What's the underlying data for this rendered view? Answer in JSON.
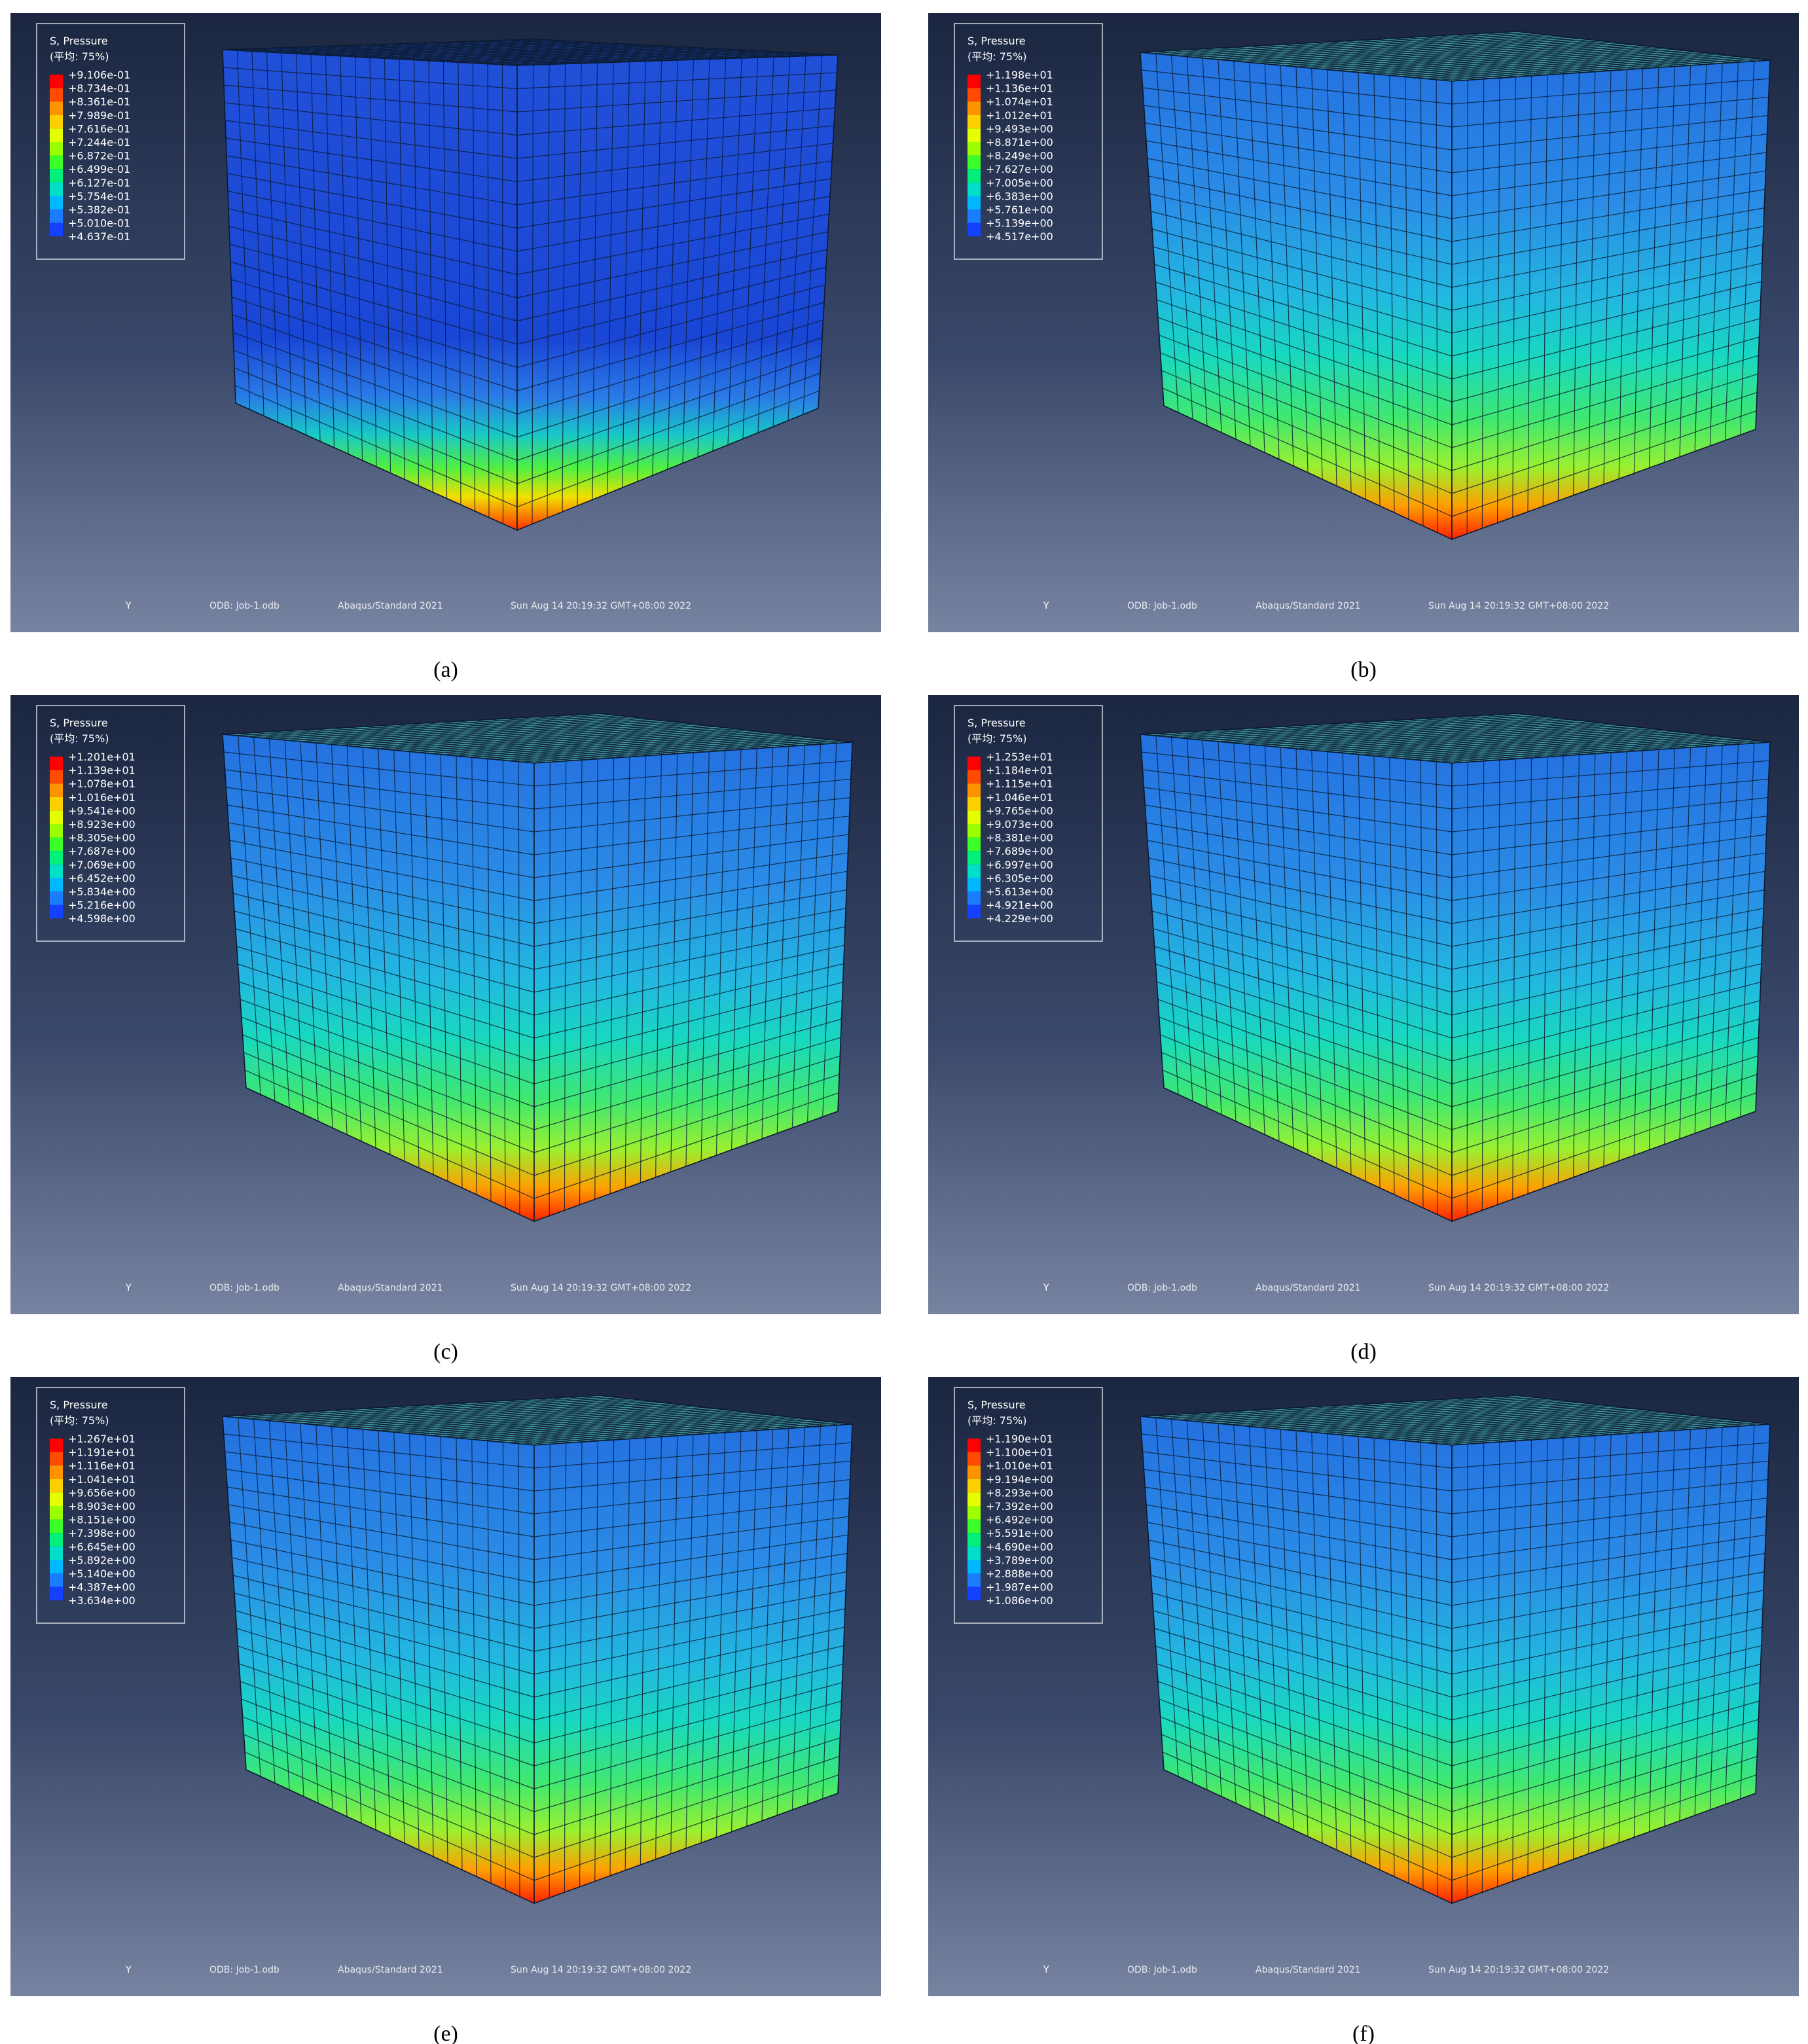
{
  "panels": [
    {
      "caption": "(a)",
      "legend": {
        "title": "S, Pressure",
        "subtitle": "(平均: 75%)",
        "values": [
          "+9.106e-01",
          "+8.734e-01",
          "+8.361e-01",
          "+7.989e-01",
          "+7.616e-01",
          "+7.244e-01",
          "+6.872e-01",
          "+6.499e-01",
          "+6.127e-01",
          "+5.754e-01",
          "+5.382e-01",
          "+5.010e-01",
          "+4.637e-01"
        ]
      },
      "footer": {
        "axis": "Y",
        "odb": "ODB: Job-1.odb",
        "solver": "Abaqus/Standard 2021",
        "date": "Sun Aug 14 20:19:32 GMT+08:00 2022"
      }
    },
    {
      "caption": "(b)",
      "legend": {
        "title": "S, Pressure",
        "subtitle": "(平均: 75%)",
        "values": [
          "+1.198e+01",
          "+1.136e+01",
          "+1.074e+01",
          "+1.012e+01",
          "+9.493e+00",
          "+8.871e+00",
          "+8.249e+00",
          "+7.627e+00",
          "+7.005e+00",
          "+6.383e+00",
          "+5.761e+00",
          "+5.139e+00",
          "+4.517e+00"
        ]
      },
      "footer": {
        "axis": "Y",
        "odb": "ODB: Job-1.odb",
        "solver": "Abaqus/Standard 2021",
        "date": "Sun Aug 14 20:19:32 GMT+08:00 2022"
      }
    },
    {
      "caption": "(c)",
      "legend": {
        "title": "S, Pressure",
        "subtitle": "(平均: 75%)",
        "values": [
          "+1.201e+01",
          "+1.139e+01",
          "+1.078e+01",
          "+1.016e+01",
          "+9.541e+00",
          "+8.923e+00",
          "+8.305e+00",
          "+7.687e+00",
          "+7.069e+00",
          "+6.452e+00",
          "+5.834e+00",
          "+5.216e+00",
          "+4.598e+00"
        ]
      },
      "footer": {
        "axis": "Y",
        "odb": "ODB: Job-1.odb",
        "solver": "Abaqus/Standard 2021",
        "date": "Sun Aug 14 20:19:32 GMT+08:00 2022"
      }
    },
    {
      "caption": "(d)",
      "legend": {
        "title": "S, Pressure",
        "subtitle": "(平均: 75%)",
        "values": [
          "+1.253e+01",
          "+1.184e+01",
          "+1.115e+01",
          "+1.046e+01",
          "+9.765e+00",
          "+9.073e+00",
          "+8.381e+00",
          "+7.689e+00",
          "+6.997e+00",
          "+6.305e+00",
          "+5.613e+00",
          "+4.921e+00",
          "+4.229e+00"
        ]
      },
      "footer": {
        "axis": "Y",
        "odb": "ODB: Job-1.odb",
        "solver": "Abaqus/Standard 2021",
        "date": "Sun Aug 14 20:19:32 GMT+08:00 2022"
      }
    },
    {
      "caption": "(e)",
      "legend": {
        "title": "S, Pressure",
        "subtitle": "(平均: 75%)",
        "values": [
          "+1.267e+01",
          "+1.191e+01",
          "+1.116e+01",
          "+1.041e+01",
          "+9.656e+00",
          "+8.903e+00",
          "+8.151e+00",
          "+7.398e+00",
          "+6.645e+00",
          "+5.892e+00",
          "+5.140e+00",
          "+4.387e+00",
          "+3.634e+00"
        ]
      },
      "footer": {
        "axis": "Y",
        "odb": "ODB: Job-1.odb",
        "solver": "Abaqus/Standard 2021",
        "date": "Sun Aug 14 20:19:32 GMT+08:00 2022"
      }
    },
    {
      "caption": "(f)",
      "legend": {
        "title": "S, Pressure",
        "subtitle": "(平均: 75%)",
        "values": [
          "+1.190e+01",
          "+1.100e+01",
          "+1.010e+01",
          "+9.194e+00",
          "+8.293e+00",
          "+7.392e+00",
          "+6.492e+00",
          "+5.591e+00",
          "+4.690e+00",
          "+3.789e+00",
          "+2.888e+00",
          "+1.987e+00",
          "+1.086e+00"
        ]
      },
      "footer": {
        "axis": "Y",
        "odb": "ODB: Job-1.odb",
        "solver": "Abaqus/Standard 2021",
        "date": "Sun Aug 14 20:19:32 GMT+08:00 2022"
      }
    }
  ]
}
